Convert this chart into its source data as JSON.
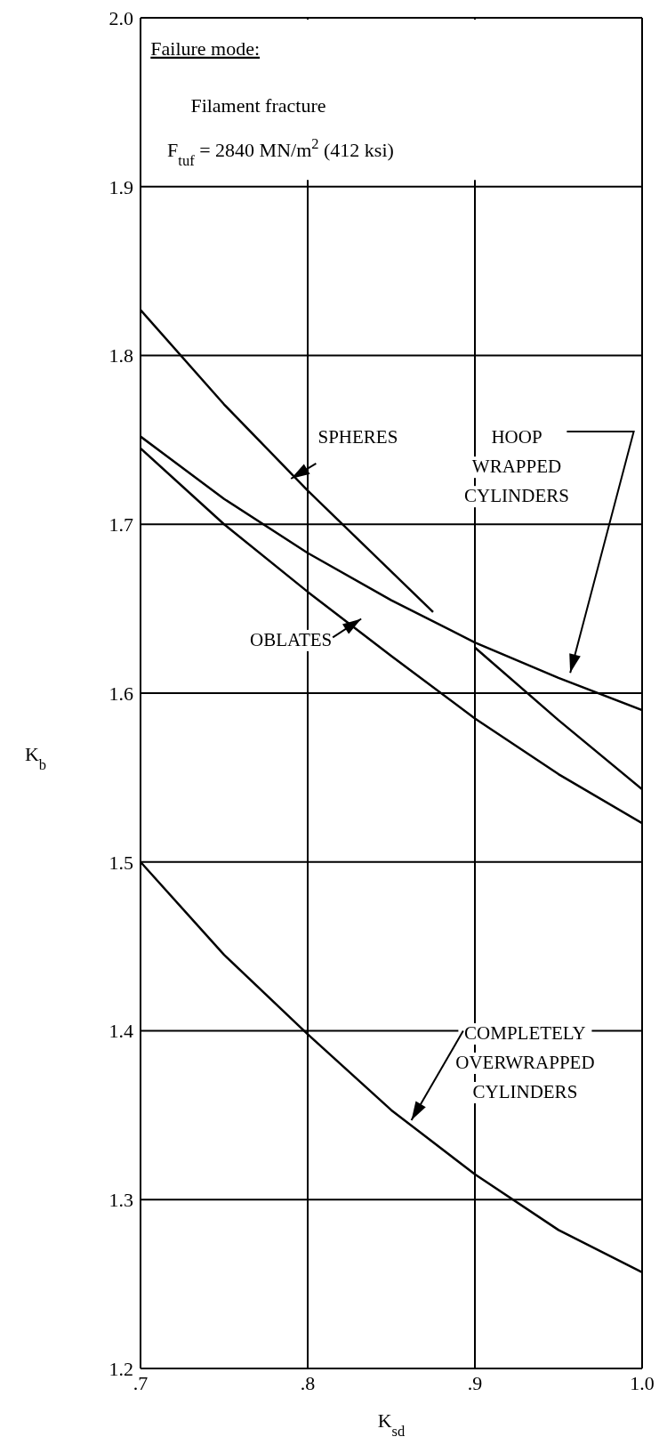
{
  "chart_data": {
    "type": "line",
    "xlabel": "K$_{sd}$",
    "ylabel": "K$_{b}$",
    "annotations": [
      "Failure mode:",
      "Filament fracture",
      "F$_{tuf}$ = 2840 MN/m$^{2}$ (412 ksi)"
    ],
    "series": [
      {
        "name": "SPHERES",
        "color": "#000000",
        "x": [
          0.7,
          0.75,
          0.8,
          0.85,
          0.875,
          0.8875,
          0.9,
          0.95,
          1.0
        ],
        "values": [
          1.827,
          1.771,
          1.72,
          1.672,
          1.648,
          null,
          1.627,
          1.584,
          1.543
        ]
      },
      {
        "name": "HOOP WRAPPED CYLINDERS",
        "color": "#000000",
        "x": [
          0.7,
          0.75,
          0.8,
          0.85,
          0.9,
          0.95,
          1.0
        ],
        "values": [
          1.752,
          1.715,
          1.683,
          1.655,
          1.63,
          1.609,
          1.59
        ]
      },
      {
        "name": "OBLATES",
        "color": "#000000",
        "x": [
          0.7,
          0.75,
          0.8,
          0.85,
          0.9,
          0.95,
          1.0
        ],
        "values": [
          1.745,
          1.7,
          1.66,
          1.622,
          1.585,
          1.552,
          1.523
        ]
      },
      {
        "name": "COMPLETELY OVERWRAPPED CYLINDERS",
        "color": "#000000",
        "x": [
          0.7,
          0.75,
          0.8,
          0.85,
          0.9,
          0.95,
          1.0
        ],
        "values": [
          1.5,
          1.445,
          1.398,
          1.353,
          1.315,
          1.282,
          1.257
        ]
      }
    ],
    "xlim": [
      0.7,
      1.0
    ],
    "xticks": [
      {
        "value": 0.7,
        "label": ".7"
      },
      {
        "value": 0.8,
        "label": ".8"
      },
      {
        "value": 0.9,
        "label": ".9"
      },
      {
        "value": 1.0,
        "label": "1.0"
      }
    ],
    "ylim": [
      1.2,
      2.0
    ],
    "yticks": [
      {
        "value": 1.2,
        "label": "1.2"
      },
      {
        "value": 1.3,
        "label": "1.3"
      },
      {
        "value": 1.4,
        "label": "1.4"
      },
      {
        "value": 1.5,
        "label": "1.5"
      },
      {
        "value": 1.6,
        "label": "1.6"
      },
      {
        "value": 1.7,
        "label": "1.7"
      },
      {
        "value": 1.8,
        "label": "1.8"
      },
      {
        "value": 1.9,
        "label": "1.9"
      },
      {
        "value": 2.0,
        "label": "2.0"
      }
    ],
    "grid": true,
    "marker": "none",
    "line_style": "solid"
  }
}
